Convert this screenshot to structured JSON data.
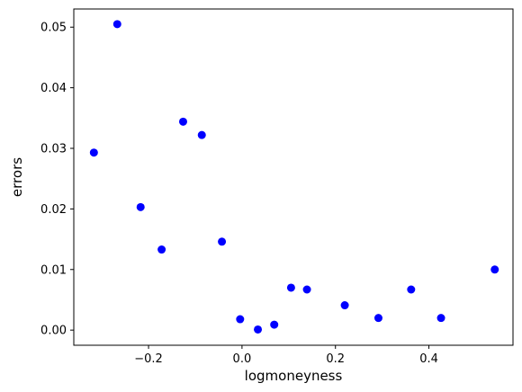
{
  "chart_data": {
    "type": "scatter",
    "title": "",
    "xlabel": "logmoneyness",
    "ylabel": "errors",
    "xlim": [
      -0.36,
      0.58
    ],
    "ylim": [
      -0.0025,
      0.053
    ],
    "xticks": [
      -0.2,
      0.0,
      0.2,
      0.4
    ],
    "xtick_labels": [
      "−0.2",
      "0.0",
      "0.2",
      "0.4"
    ],
    "yticks": [
      0.0,
      0.01,
      0.02,
      0.03,
      0.04,
      0.05
    ],
    "ytick_labels": [
      "0.00",
      "0.01",
      "0.02",
      "0.03",
      "0.04",
      "0.05"
    ],
    "grid": false,
    "legend": "none",
    "marker_color": "#0000ff",
    "points": [
      {
        "x": -0.317,
        "y": 0.0293
      },
      {
        "x": -0.267,
        "y": 0.0505
      },
      {
        "x": -0.217,
        "y": 0.0203
      },
      {
        "x": -0.172,
        "y": 0.0133
      },
      {
        "x": -0.126,
        "y": 0.0344
      },
      {
        "x": -0.086,
        "y": 0.0322
      },
      {
        "x": -0.043,
        "y": 0.0146
      },
      {
        "x": -0.004,
        "y": 0.0018
      },
      {
        "x": 0.034,
        "y": 0.0001
      },
      {
        "x": 0.069,
        "y": 0.0009
      },
      {
        "x": 0.105,
        "y": 0.007
      },
      {
        "x": 0.139,
        "y": 0.0067
      },
      {
        "x": 0.22,
        "y": 0.0041
      },
      {
        "x": 0.292,
        "y": 0.002
      },
      {
        "x": 0.362,
        "y": 0.0067
      },
      {
        "x": 0.426,
        "y": 0.002
      },
      {
        "x": 0.541,
        "y": 0.01
      }
    ]
  }
}
